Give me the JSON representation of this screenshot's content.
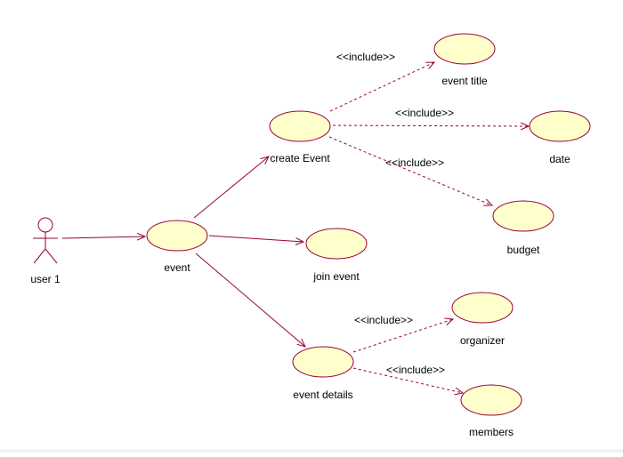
{
  "actor": {
    "label": "user 1"
  },
  "use_cases": {
    "event": "event",
    "create_event": "create Event",
    "join_event": "join event",
    "event_details": "event details",
    "event_title": "event title",
    "date": "date",
    "budget": "budget",
    "organizer": "organizer",
    "members": "members"
  },
  "stereotypes": {
    "include_title": "<<include>>",
    "include_date": "<<include>>",
    "include_budget": "<<include>>",
    "include_organizer": "<<include>>",
    "include_members": "<<include>>"
  },
  "colors": {
    "usecase_fill": "#ffffcc",
    "line": "#990033",
    "outline": "#990033"
  }
}
